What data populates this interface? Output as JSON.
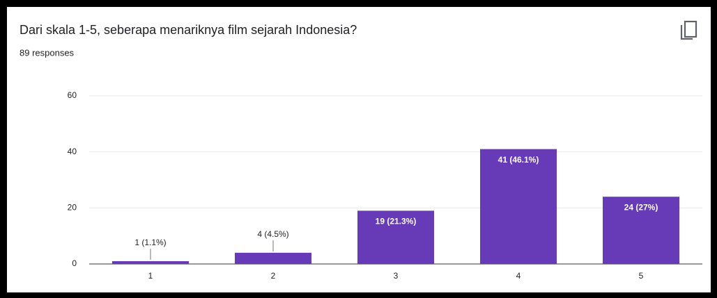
{
  "chart_data": {
    "type": "bar",
    "title": "Dari skala 1-5, seberapa menariknya film sejarah Indonesia?",
    "subtitle": "89 responses",
    "categories": [
      "1",
      "2",
      "3",
      "4",
      "5"
    ],
    "values": [
      1,
      4,
      19,
      41,
      24
    ],
    "value_labels": [
      "1 (1.1%)",
      "4 (4.5%)",
      "19 (21.3%)",
      "41 (46.1%)",
      "24 (27%)"
    ],
    "color": "#673ab7",
    "ylim": [
      0,
      60
    ],
    "yticks": [
      0,
      20,
      40,
      60
    ],
    "grid": true
  }
}
